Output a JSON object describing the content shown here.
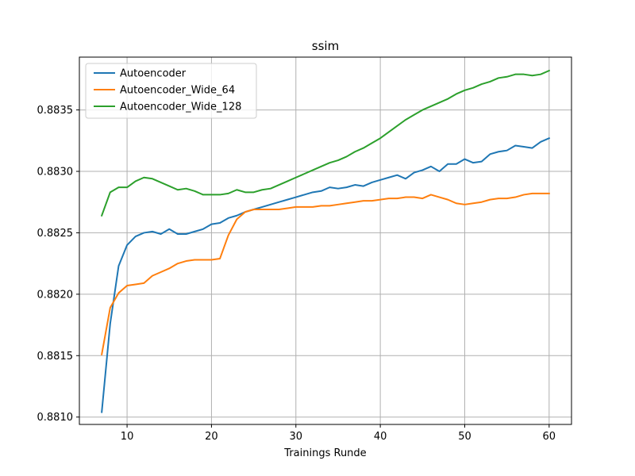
{
  "chart_data": {
    "type": "line",
    "title": "ssim",
    "xlabel": "Trainings Runde",
    "ylabel": "",
    "xlim": [
      4.35,
      62.65
    ],
    "ylim": [
      0.88094,
      0.88393
    ],
    "xticks": [
      10,
      20,
      30,
      40,
      50,
      60
    ],
    "yticks": [
      0.881,
      0.8815,
      0.882,
      0.8825,
      0.883,
      0.8835
    ],
    "ytick_labels": [
      "0.8810",
      "0.8815",
      "0.8820",
      "0.8825",
      "0.8830",
      "0.8835"
    ],
    "grid": true,
    "legend_position": "top-left",
    "x": [
      7,
      8,
      9,
      10,
      11,
      12,
      13,
      14,
      15,
      16,
      17,
      18,
      19,
      20,
      21,
      22,
      23,
      24,
      25,
      26,
      27,
      28,
      29,
      30,
      31,
      32,
      33,
      34,
      35,
      36,
      37,
      38,
      39,
      40,
      41,
      42,
      43,
      44,
      45,
      46,
      47,
      48,
      49,
      50,
      51,
      52,
      53,
      54,
      55,
      56,
      57,
      58,
      59,
      60
    ],
    "series": [
      {
        "name": "Autoencoder",
        "color": "#1f77b4",
        "values": [
          0.88104,
          0.88176,
          0.88223,
          0.8824,
          0.88247,
          0.8825,
          0.88251,
          0.88249,
          0.88253,
          0.88249,
          0.88249,
          0.88251,
          0.88253,
          0.88257,
          0.88258,
          0.88262,
          0.88264,
          0.88267,
          0.88269,
          0.88271,
          0.88273,
          0.88275,
          0.88277,
          0.88279,
          0.88281,
          0.88283,
          0.88284,
          0.88287,
          0.88286,
          0.88287,
          0.88289,
          0.88288,
          0.88291,
          0.88293,
          0.88295,
          0.88297,
          0.88294,
          0.88299,
          0.88301,
          0.88304,
          0.883,
          0.88306,
          0.88306,
          0.8831,
          0.88307,
          0.88308,
          0.88314,
          0.88316,
          0.88317,
          0.88321,
          0.8832,
          0.88319,
          0.88324,
          0.88327
        ]
      },
      {
        "name": "Autoencoder_Wide_64",
        "color": "#ff7f0e",
        "values": [
          0.88151,
          0.88189,
          0.88201,
          0.88207,
          0.88208,
          0.88209,
          0.88215,
          0.88218,
          0.88221,
          0.88225,
          0.88227,
          0.88228,
          0.88228,
          0.88228,
          0.88229,
          0.88248,
          0.88261,
          0.88267,
          0.88269,
          0.88269,
          0.88269,
          0.88269,
          0.8827,
          0.88271,
          0.88271,
          0.88271,
          0.88272,
          0.88272,
          0.88273,
          0.88274,
          0.88275,
          0.88276,
          0.88276,
          0.88277,
          0.88278,
          0.88278,
          0.88279,
          0.88279,
          0.88278,
          0.88281,
          0.88279,
          0.88277,
          0.88274,
          0.88273,
          0.88274,
          0.88275,
          0.88277,
          0.88278,
          0.88278,
          0.88279,
          0.88281,
          0.88282,
          0.88282,
          0.88282
        ]
      },
      {
        "name": "Autoencoder_Wide_128",
        "color": "#2ca02c",
        "values": [
          0.88264,
          0.88283,
          0.88287,
          0.88287,
          0.88292,
          0.88295,
          0.88294,
          0.88291,
          0.88288,
          0.88285,
          0.88286,
          0.88284,
          0.88281,
          0.88281,
          0.88281,
          0.88282,
          0.88285,
          0.88283,
          0.88283,
          0.88285,
          0.88286,
          0.88289,
          0.88292,
          0.88295,
          0.88298,
          0.88301,
          0.88304,
          0.88307,
          0.88309,
          0.88312,
          0.88316,
          0.88319,
          0.88323,
          0.88327,
          0.88332,
          0.88337,
          0.88342,
          0.88346,
          0.8835,
          0.88353,
          0.88356,
          0.88359,
          0.88363,
          0.88366,
          0.88368,
          0.88371,
          0.88373,
          0.88376,
          0.88377,
          0.88379,
          0.88379,
          0.88378,
          0.88379,
          0.88382
        ]
      }
    ]
  }
}
